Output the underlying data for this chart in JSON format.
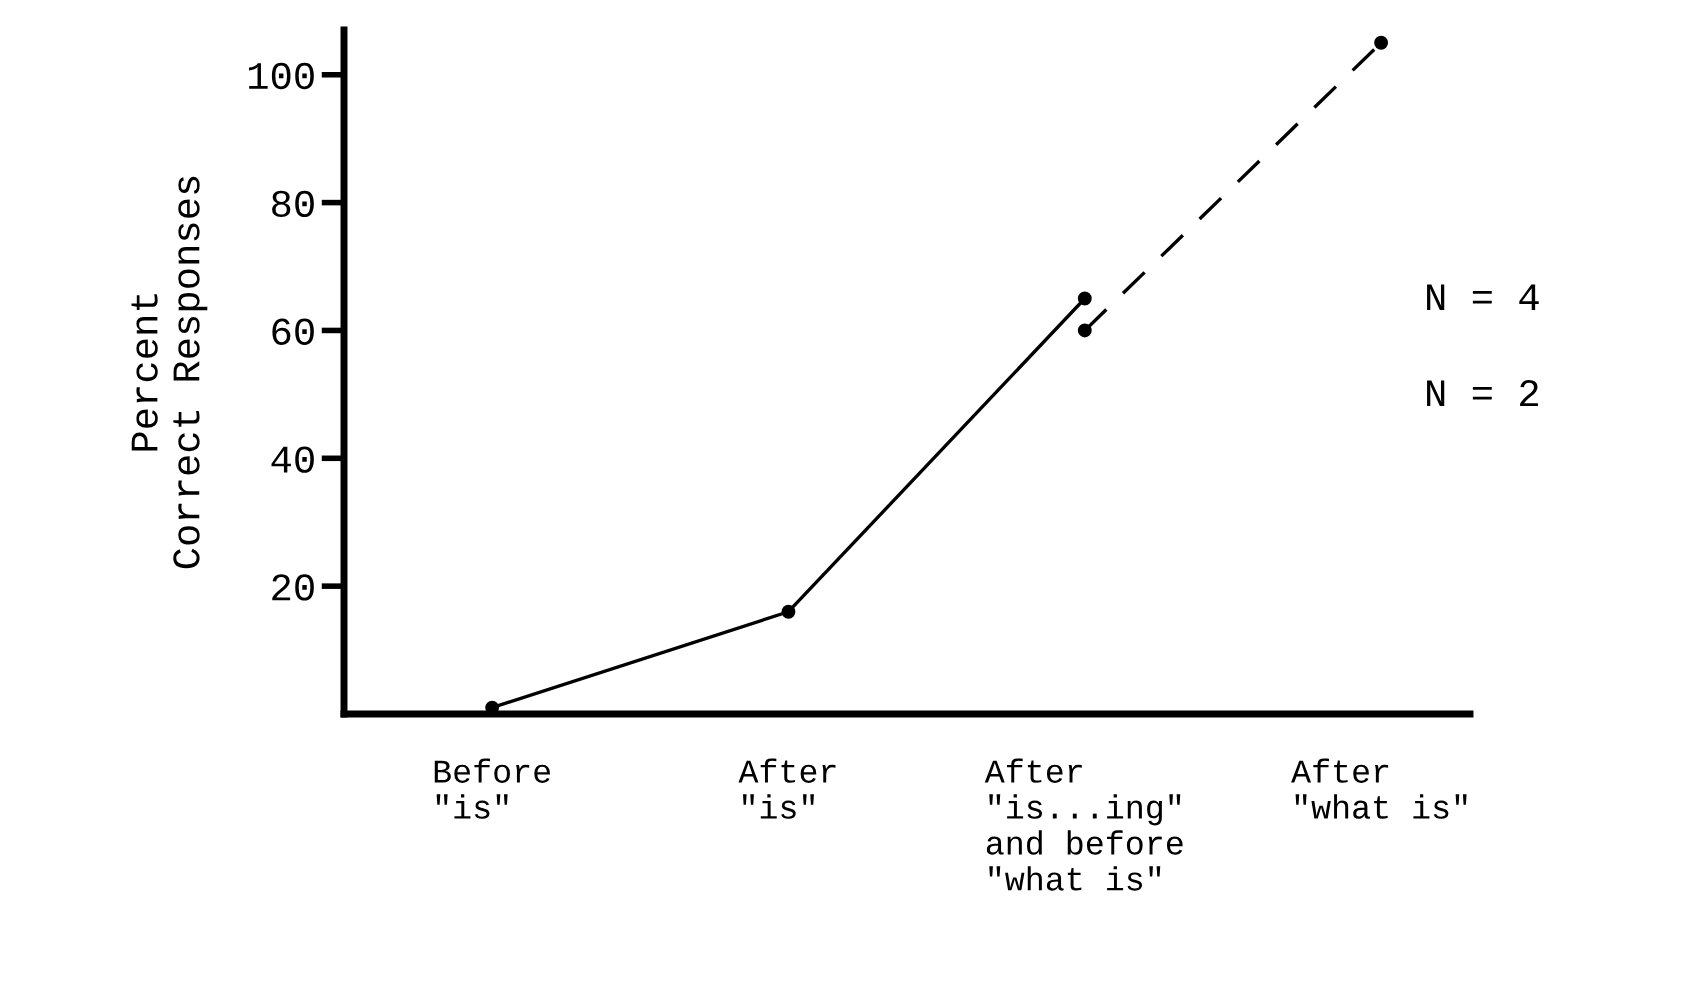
{
  "chart_data": {
    "type": "line",
    "ylabel": "Percent\nCorrect Responses",
    "categories": [
      "Before\n\"is\"",
      "After\n\"is\"",
      "After\n\"is...ing\"\nand before\n\"what is\"",
      "After\n\"what is\""
    ],
    "series": [
      {
        "color": "#000000",
        "values": [
          1,
          16,
          65,
          null
        ],
        "line_style": "solid"
      },
      {
        "color": "#000000",
        "values": [
          null,
          null,
          60,
          105
        ],
        "line_style": "dashed"
      }
    ],
    "marker": "circle",
    "ylim": [
      0,
      107
    ],
    "yticks": [
      20,
      40,
      60,
      80,
      100
    ],
    "grid": false,
    "annotations": [
      "N = 4",
      "N = 2"
    ]
  }
}
